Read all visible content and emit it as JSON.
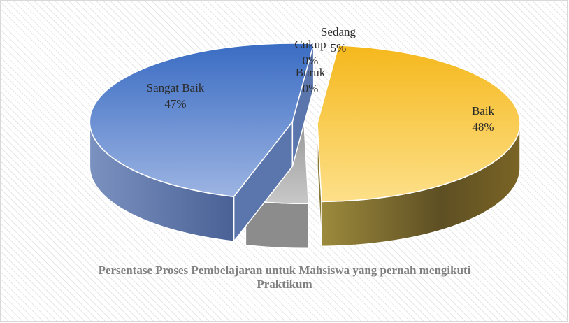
{
  "chart_data": {
    "type": "pie",
    "title": "Persentase Proses Pembelajaran untuk Mahsiswa yang pernah mengikuti Praktikum",
    "slices": [
      {
        "label": "Baik",
        "value": 48,
        "value_label": "48%",
        "color": "#f5b400"
      },
      {
        "label": "Sedang",
        "value": 5,
        "value_label": "5%",
        "color": "#a6a6a6"
      },
      {
        "label": "Cukup",
        "value": 0,
        "value_label": "0%",
        "color": "#2f5597"
      },
      {
        "label": "Buruk",
        "value": 0,
        "value_label": "0%",
        "color": "#7f6000"
      },
      {
        "label": "Sangat Baik",
        "value": 47,
        "value_label": "47%",
        "color": "#4472c4"
      }
    ],
    "style": "3d-exploded",
    "legend": "none"
  }
}
